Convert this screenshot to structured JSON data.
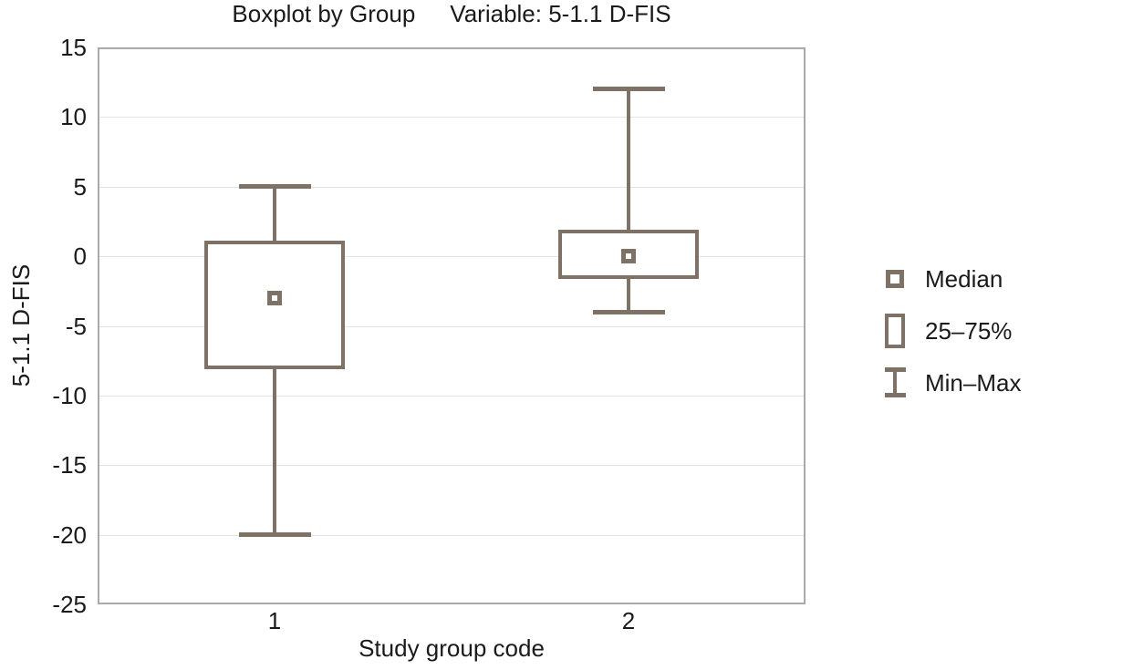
{
  "chart": {
    "title": "Boxplot by Group",
    "variable_label": "Variable: 5-1.1 D-FIS",
    "xlabel": "Study group code",
    "ylabel": "5-1.1 D-FIS"
  },
  "chart_data": {
    "type": "boxplot",
    "title": "Boxplot by Group    Variable: 5-1.1 D-FIS",
    "xlabel": "Study group code",
    "ylabel": "5-1.1 D-FIS",
    "ylim": [
      -25,
      15
    ],
    "yticks": [
      15,
      10,
      5,
      0,
      -5,
      -10,
      -15,
      -20,
      -25
    ],
    "categories": [
      "1",
      "2"
    ],
    "series": [
      {
        "category": "1",
        "min": -20,
        "q1": -8,
        "median": -3,
        "q3": 1,
        "max": 5
      },
      {
        "category": "2",
        "min": -4,
        "q1": -1.5,
        "median": 0,
        "q3": 1.8,
        "max": 12
      }
    ],
    "legend": [
      {
        "symbol": "median-square",
        "label": "Median"
      },
      {
        "symbol": "iqr-box",
        "label": "25–75%"
      },
      {
        "symbol": "min-max-whisker",
        "label": "Min–Max"
      }
    ],
    "legend_position": "right",
    "grid": "horizontal",
    "colors": {
      "box": "#7d7265",
      "frame": "#a9a9a9",
      "gridline": "#e4e4e4",
      "text": "#1a1a1a",
      "background": "#ffffff"
    }
  }
}
